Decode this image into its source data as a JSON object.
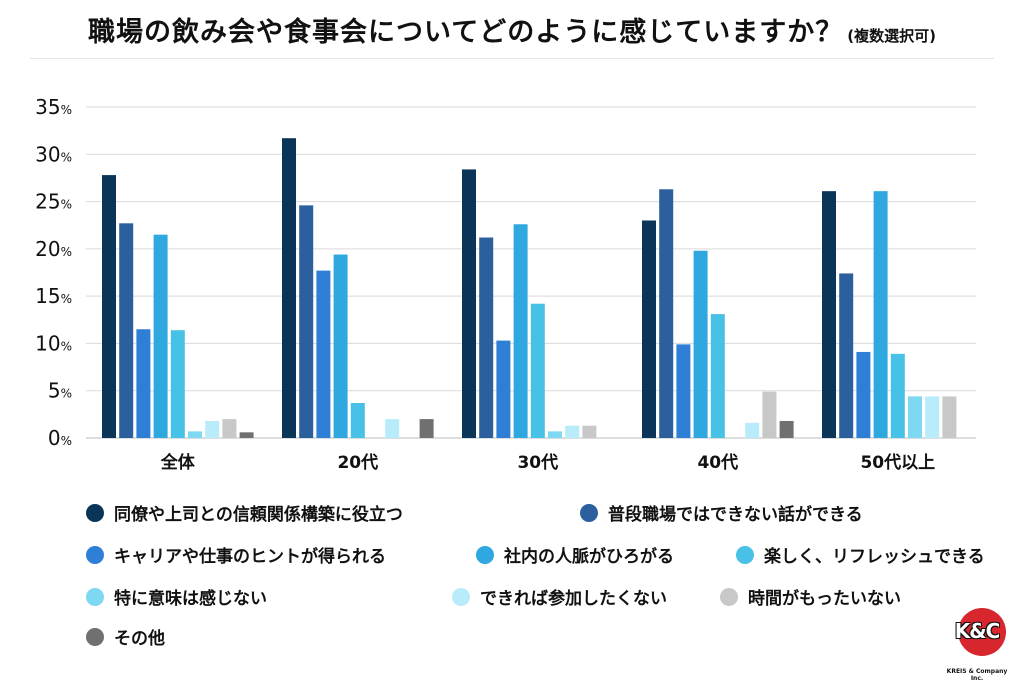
{
  "header": {
    "title": "職場の飲み会や食事会についてどのように感じていますか？",
    "subtitle": "(複数選択可)"
  },
  "logo": {
    "mark": "K&C",
    "company": "KREIS & Company Inc."
  },
  "chart_data": {
    "type": "bar",
    "title": "職場の飲み会や食事会についてどのように感じていますか？",
    "categories": [
      "全体",
      "20代",
      "30代",
      "40代",
      "50代以上"
    ],
    "ylim": [
      0,
      35
    ],
    "yticks": [
      0,
      5,
      10,
      15,
      20,
      25,
      30,
      35
    ],
    "ytick_unit": "%",
    "grid": true,
    "legend_position": "bottom",
    "series": [
      {
        "name": "同僚や上司との信頼関係構築に役立つ",
        "color": "#0b3558",
        "values": [
          27.8,
          31.7,
          28.4,
          23.0,
          26.1
        ]
      },
      {
        "name": "普段職場ではできない話ができる",
        "color": "#2b5f9e",
        "values": [
          22.7,
          24.6,
          21.2,
          26.3,
          17.4
        ]
      },
      {
        "name": "キャリアや仕事のヒントが得られる",
        "color": "#2f7fd6",
        "values": [
          11.5,
          17.7,
          10.3,
          9.9,
          9.1
        ]
      },
      {
        "name": "社内の人脈がひろがる",
        "color": "#2ea8de",
        "values": [
          21.5,
          19.4,
          22.6,
          19.8,
          26.1
        ]
      },
      {
        "name": "楽しく、リフレッシュできる",
        "color": "#47c1e6",
        "values": [
          11.4,
          3.7,
          14.2,
          13.1,
          8.9
        ]
      },
      {
        "name": "特に意味は感じない",
        "color": "#7fd8f2",
        "values": [
          0.7,
          0,
          0.7,
          0,
          4.4
        ]
      },
      {
        "name": "できれば参加したくない",
        "color": "#b8ecfa",
        "values": [
          1.8,
          2.0,
          1.3,
          1.6,
          4.4
        ]
      },
      {
        "name": "時間がもったいない",
        "color": "#c8c8c8",
        "values": [
          2.0,
          0,
          1.3,
          4.9,
          4.4
        ]
      },
      {
        "name": "その他",
        "color": "#707070",
        "values": [
          0.6,
          2.0,
          0,
          1.8,
          0
        ]
      }
    ]
  }
}
